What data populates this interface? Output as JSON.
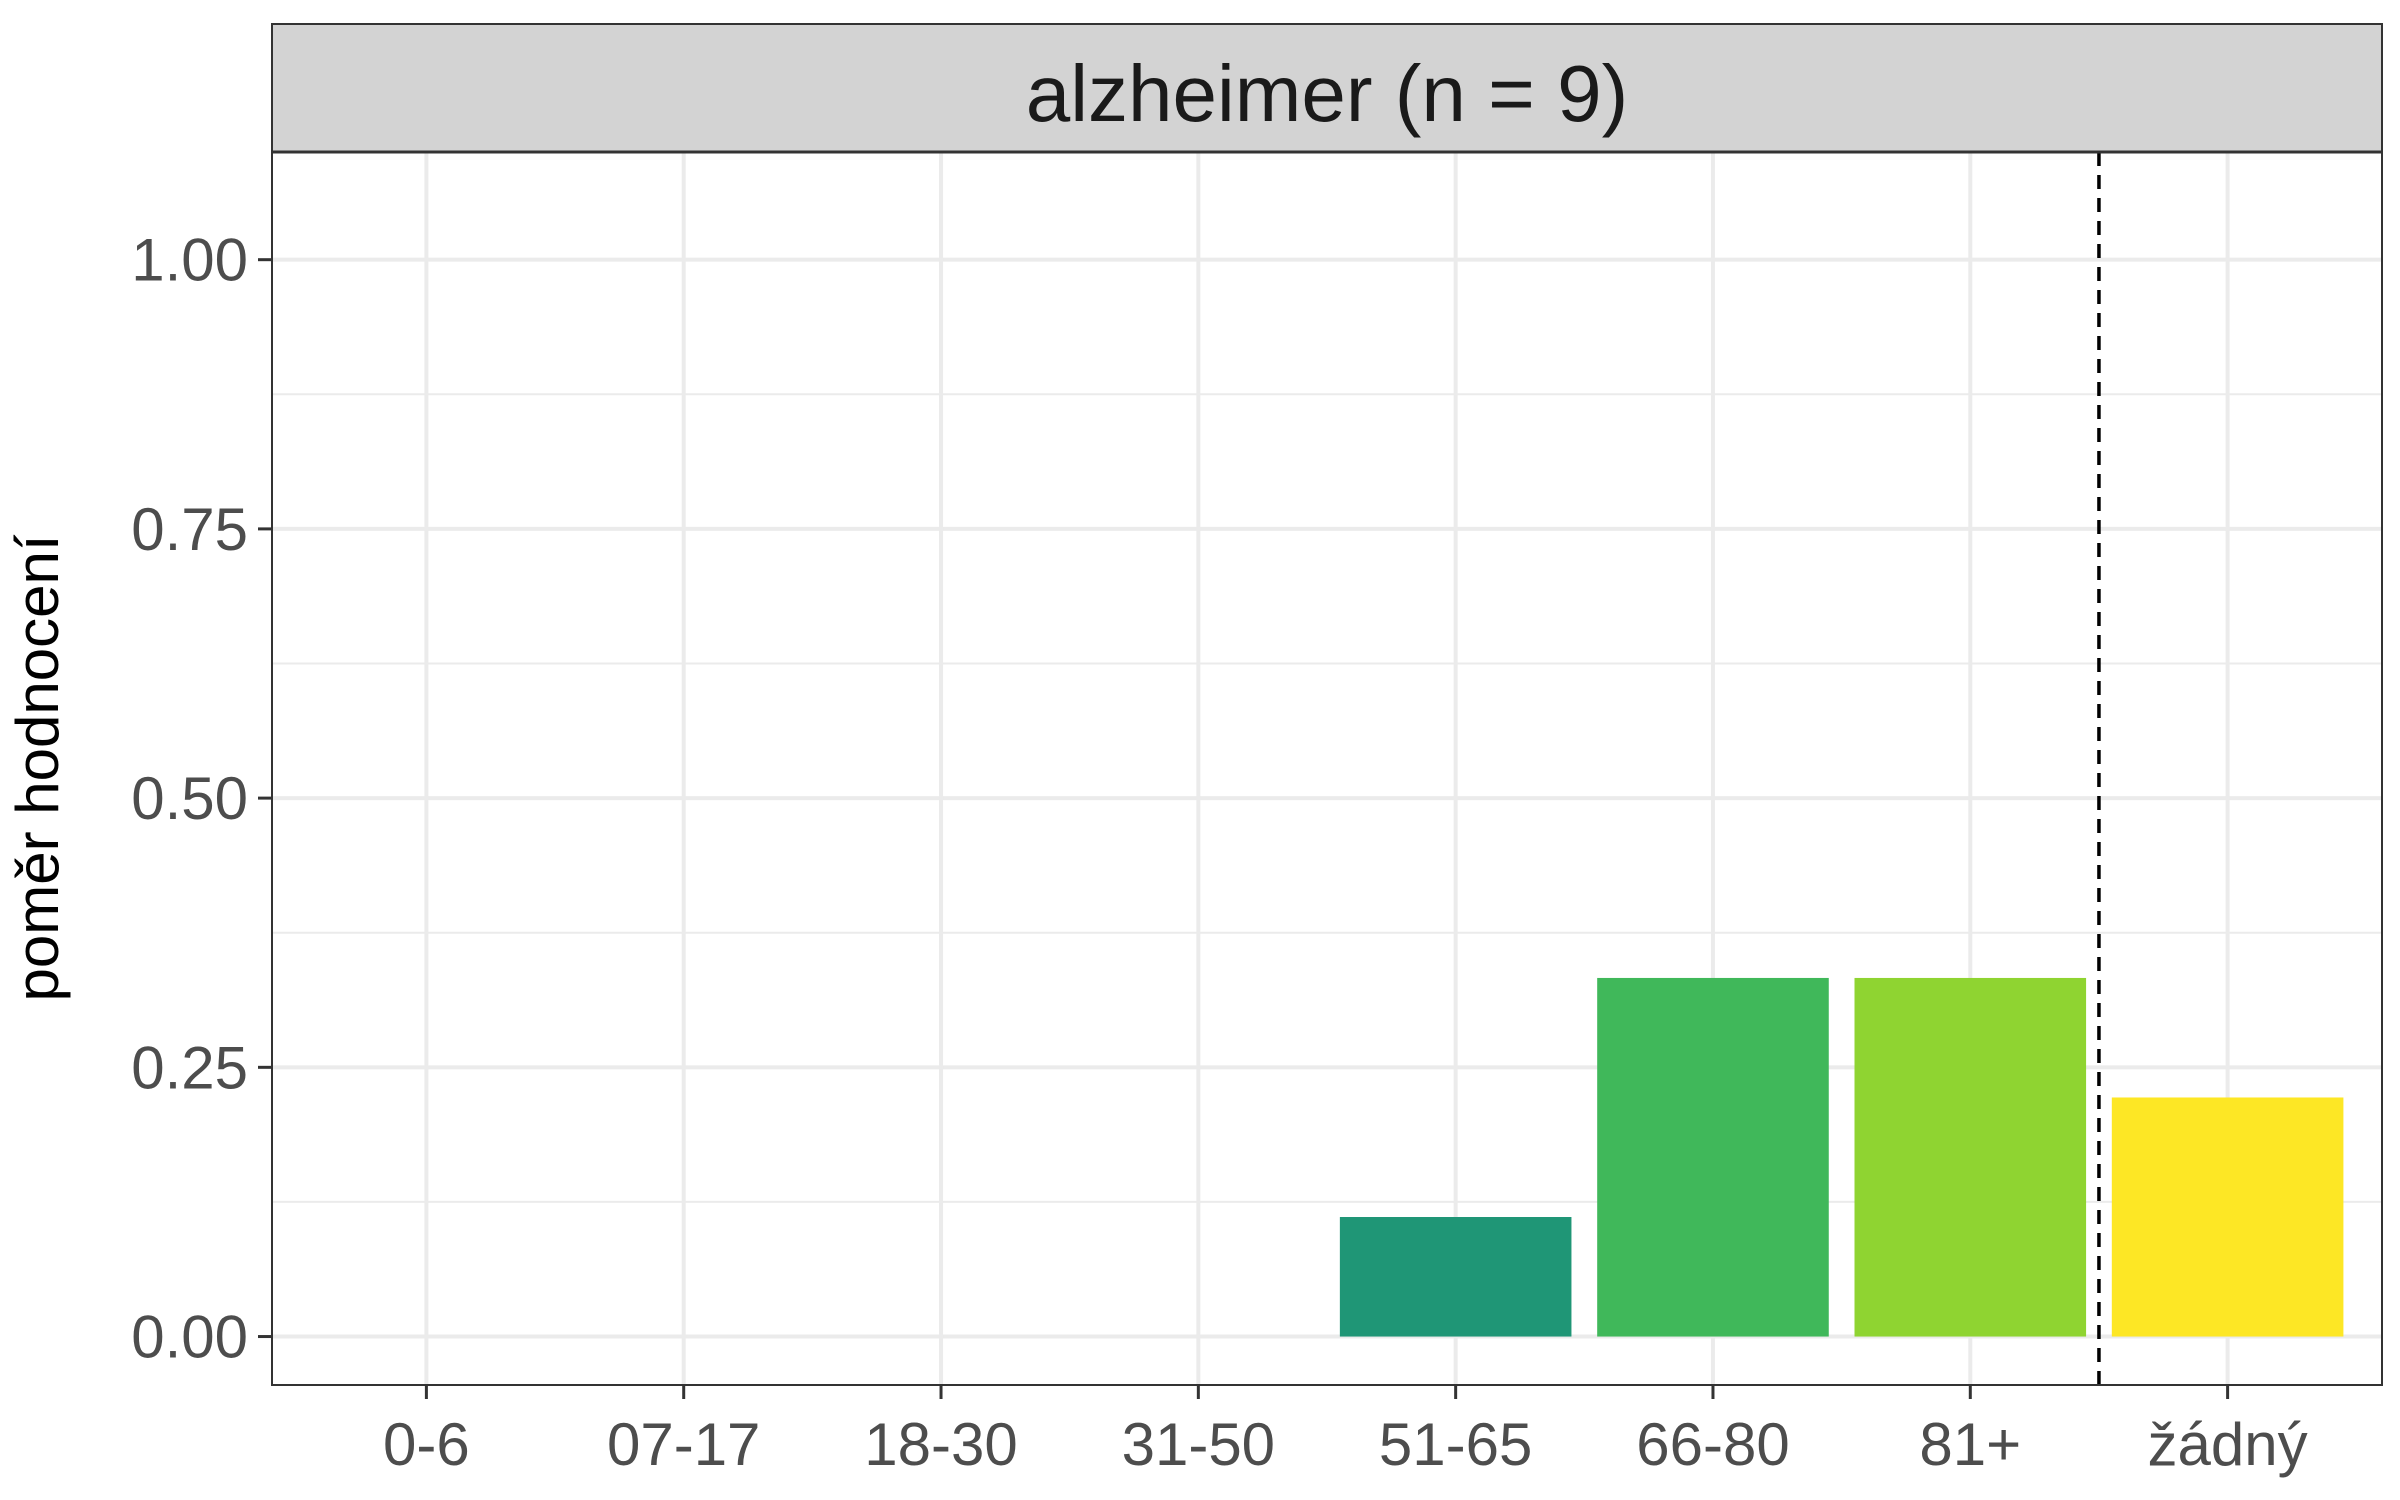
{
  "chart_data": {
    "type": "bar",
    "facet_title": "alzheimer (n = 9)",
    "categories": [
      "0-6",
      "07-17",
      "18-30",
      "31-50",
      "51-65",
      "66-80",
      "81+",
      "žádný"
    ],
    "values": [
      0,
      0,
      0,
      0,
      0.111,
      0.333,
      0.333,
      0.222
    ],
    "colors": [
      "#440154",
      "#46327E",
      "#365C8D",
      "#277F8E",
      "#1F9676",
      "#40B85A",
      "#8FD431",
      "#FDE725"
    ],
    "ylabel": "poměr hodnocení",
    "xlabel": "",
    "ylim": [
      -0.045,
      1.1
    ],
    "yticks": [
      0,
      0.25,
      0.5,
      0.75,
      1
    ],
    "ytick_labels": [
      "0.00",
      "0.25",
      "0.50",
      "0.75",
      "1.00"
    ],
    "reference_line": {
      "style": "dashed",
      "between_categories": [
        "81+",
        "žádný"
      ]
    },
    "grid": true,
    "legend": "none"
  }
}
